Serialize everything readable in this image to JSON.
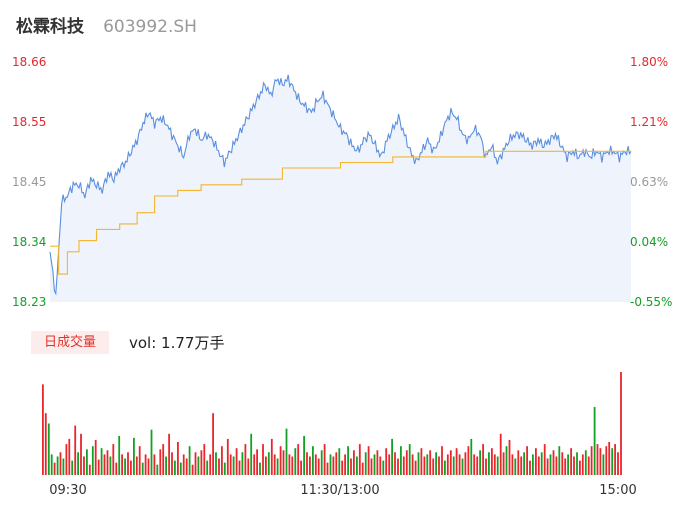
{
  "header": {
    "name": "松霖科技",
    "code": "603992.SH"
  },
  "colors": {
    "up": "#e8262b",
    "down": "#12a026",
    "price_line": "#5b8fde",
    "avg_line": "#f2b630",
    "area_fill": "#eef3fc",
    "neutral": "#999999",
    "tab_bg": "#fdecec"
  },
  "volume_panel": {
    "tab_label": "日成交量",
    "readout": "vol: 1.77万手"
  },
  "chart_data": {
    "type": "line",
    "y_price_ticks": [
      "18.66",
      "18.55",
      "18.45",
      "18.34",
      "18.23"
    ],
    "y_pct_ticks": [
      "1.80%",
      "1.21%",
      "0.63%",
      "0.04%",
      "-0.55%"
    ],
    "ylim": [
      18.23,
      18.66
    ],
    "x_ticks": [
      "09:30",
      "11:30/13:00",
      "15:00"
    ],
    "price_keypoints": [
      [
        0,
        18.32
      ],
      [
        2,
        18.24
      ],
      [
        4,
        18.41
      ],
      [
        6,
        18.42
      ],
      [
        8,
        18.44
      ],
      [
        10,
        18.44
      ],
      [
        12,
        18.42
      ],
      [
        14,
        18.45
      ],
      [
        16,
        18.44
      ],
      [
        18,
        18.43
      ],
      [
        20,
        18.46
      ],
      [
        22,
        18.45
      ],
      [
        24,
        18.47
      ],
      [
        26,
        18.48
      ],
      [
        28,
        18.5
      ],
      [
        30,
        18.52
      ],
      [
        32,
        18.55
      ],
      [
        34,
        18.57
      ],
      [
        36,
        18.55
      ],
      [
        38,
        18.56
      ],
      [
        40,
        18.55
      ],
      [
        42,
        18.53
      ],
      [
        44,
        18.51
      ],
      [
        46,
        18.49
      ],
      [
        48,
        18.53
      ],
      [
        50,
        18.54
      ],
      [
        52,
        18.52
      ],
      [
        54,
        18.53
      ],
      [
        56,
        18.52
      ],
      [
        58,
        18.5
      ],
      [
        60,
        18.48
      ],
      [
        62,
        18.5
      ],
      [
        64,
        18.52
      ],
      [
        66,
        18.54
      ],
      [
        68,
        18.56
      ],
      [
        70,
        18.58
      ],
      [
        72,
        18.6
      ],
      [
        74,
        18.62
      ],
      [
        76,
        18.6
      ],
      [
        78,
        18.63
      ],
      [
        80,
        18.62
      ],
      [
        82,
        18.63
      ],
      [
        84,
        18.61
      ],
      [
        86,
        18.59
      ],
      [
        88,
        18.58
      ],
      [
        90,
        18.57
      ],
      [
        92,
        18.59
      ],
      [
        94,
        18.6
      ],
      [
        96,
        18.58
      ],
      [
        98,
        18.56
      ],
      [
        100,
        18.54
      ],
      [
        102,
        18.53
      ],
      [
        104,
        18.51
      ],
      [
        106,
        18.5
      ],
      [
        108,
        18.52
      ],
      [
        110,
        18.53
      ],
      [
        112,
        18.51
      ],
      [
        114,
        18.49
      ],
      [
        116,
        18.52
      ],
      [
        118,
        18.54
      ],
      [
        120,
        18.56
      ],
      [
        122,
        18.53
      ],
      [
        124,
        18.5
      ],
      [
        126,
        18.48
      ],
      [
        128,
        18.5
      ],
      [
        130,
        18.52
      ],
      [
        132,
        18.5
      ],
      [
        134,
        18.52
      ],
      [
        136,
        18.55
      ],
      [
        138,
        18.57
      ],
      [
        140,
        18.56
      ],
      [
        142,
        18.53
      ],
      [
        144,
        18.52
      ],
      [
        146,
        18.54
      ],
      [
        148,
        18.53
      ],
      [
        150,
        18.49
      ],
      [
        152,
        18.51
      ],
      [
        154,
        18.48
      ],
      [
        156,
        18.5
      ],
      [
        158,
        18.52
      ],
      [
        160,
        18.53
      ],
      [
        162,
        18.53
      ],
      [
        164,
        18.52
      ],
      [
        166,
        18.51
      ],
      [
        168,
        18.52
      ],
      [
        170,
        18.51
      ],
      [
        172,
        18.52
      ],
      [
        174,
        18.53
      ],
      [
        176,
        18.51
      ],
      [
        178,
        18.49
      ],
      [
        180,
        18.5
      ],
      [
        182,
        18.49
      ],
      [
        184,
        18.5
      ],
      [
        186,
        18.49
      ],
      [
        188,
        18.5
      ],
      [
        190,
        18.49
      ],
      [
        192,
        18.5
      ],
      [
        194,
        18.5
      ],
      [
        196,
        18.49
      ],
      [
        198,
        18.5
      ],
      [
        200,
        18.5
      ]
    ],
    "avg_keypoints": [
      [
        0,
        18.33
      ],
      [
        3,
        18.28
      ],
      [
        6,
        18.32
      ],
      [
        10,
        18.34
      ],
      [
        16,
        18.36
      ],
      [
        24,
        18.37
      ],
      [
        30,
        18.39
      ],
      [
        36,
        18.42
      ],
      [
        44,
        18.43
      ],
      [
        52,
        18.44
      ],
      [
        66,
        18.45
      ],
      [
        80,
        18.47
      ],
      [
        100,
        18.48
      ],
      [
        118,
        18.49
      ],
      [
        150,
        18.5
      ],
      [
        200,
        18.5
      ]
    ],
    "volume_max": 100,
    "volume": [
      [
        88,
        "up"
      ],
      [
        60,
        "up"
      ],
      [
        50,
        "down"
      ],
      [
        20,
        "down"
      ],
      [
        12,
        "up"
      ],
      [
        18,
        "down"
      ],
      [
        22,
        "up"
      ],
      [
        16,
        "down"
      ],
      [
        30,
        "up"
      ],
      [
        35,
        "up"
      ],
      [
        14,
        "down"
      ],
      [
        48,
        "up"
      ],
      [
        22,
        "down"
      ],
      [
        40,
        "up"
      ],
      [
        18,
        "up"
      ],
      [
        25,
        "down"
      ],
      [
        10,
        "up"
      ],
      [
        28,
        "down"
      ],
      [
        34,
        "up"
      ],
      [
        15,
        "up"
      ],
      [
        26,
        "down"
      ],
      [
        20,
        "up"
      ],
      [
        24,
        "up"
      ],
      [
        18,
        "down"
      ],
      [
        30,
        "up"
      ],
      [
        12,
        "up"
      ],
      [
        38,
        "down"
      ],
      [
        20,
        "up"
      ],
      [
        16,
        "down"
      ],
      [
        22,
        "up"
      ],
      [
        14,
        "up"
      ],
      [
        36,
        "down"
      ],
      [
        18,
        "up"
      ],
      [
        28,
        "up"
      ],
      [
        12,
        "down"
      ],
      [
        20,
        "up"
      ],
      [
        16,
        "up"
      ],
      [
        44,
        "down"
      ],
      [
        20,
        "up"
      ],
      [
        10,
        "down"
      ],
      [
        25,
        "up"
      ],
      [
        30,
        "up"
      ],
      [
        18,
        "down"
      ],
      [
        40,
        "up"
      ],
      [
        22,
        "up"
      ],
      [
        14,
        "down"
      ],
      [
        32,
        "up"
      ],
      [
        12,
        "down"
      ],
      [
        20,
        "up"
      ],
      [
        16,
        "up"
      ],
      [
        28,
        "down"
      ],
      [
        10,
        "up"
      ],
      [
        22,
        "up"
      ],
      [
        18,
        "down"
      ],
      [
        24,
        "up"
      ],
      [
        30,
        "up"
      ],
      [
        14,
        "down"
      ],
      [
        20,
        "up"
      ],
      [
        60,
        "up"
      ],
      [
        22,
        "down"
      ],
      [
        16,
        "up"
      ],
      [
        28,
        "up"
      ],
      [
        12,
        "down"
      ],
      [
        35,
        "up"
      ],
      [
        20,
        "up"
      ],
      [
        18,
        "down"
      ],
      [
        26,
        "up"
      ],
      [
        14,
        "up"
      ],
      [
        22,
        "down"
      ],
      [
        30,
        "up"
      ],
      [
        16,
        "up"
      ],
      [
        40,
        "down"
      ],
      [
        20,
        "up"
      ],
      [
        25,
        "up"
      ],
      [
        12,
        "down"
      ],
      [
        30,
        "up"
      ],
      [
        18,
        "up"
      ],
      [
        22,
        "down"
      ],
      [
        35,
        "up"
      ],
      [
        20,
        "up"
      ],
      [
        16,
        "down"
      ],
      [
        28,
        "up"
      ],
      [
        24,
        "up"
      ],
      [
        45,
        "down"
      ],
      [
        20,
        "up"
      ],
      [
        18,
        "up"
      ],
      [
        26,
        "down"
      ],
      [
        30,
        "up"
      ],
      [
        14,
        "up"
      ],
      [
        38,
        "down"
      ],
      [
        22,
        "up"
      ],
      [
        18,
        "up"
      ],
      [
        28,
        "down"
      ],
      [
        20,
        "up"
      ],
      [
        16,
        "up"
      ],
      [
        24,
        "down"
      ],
      [
        30,
        "up"
      ],
      [
        12,
        "up"
      ],
      [
        20,
        "down"
      ],
      [
        18,
        "up"
      ],
      [
        22,
        "up"
      ],
      [
        26,
        "down"
      ],
      [
        14,
        "up"
      ],
      [
        20,
        "up"
      ],
      [
        28,
        "down"
      ],
      [
        16,
        "up"
      ],
      [
        24,
        "up"
      ],
      [
        18,
        "down"
      ],
      [
        30,
        "up"
      ],
      [
        12,
        "up"
      ],
      [
        22,
        "down"
      ],
      [
        28,
        "up"
      ],
      [
        16,
        "up"
      ],
      [
        20,
        "down"
      ],
      [
        24,
        "up"
      ],
      [
        18,
        "up"
      ],
      [
        14,
        "down"
      ],
      [
        26,
        "up"
      ],
      [
        20,
        "up"
      ],
      [
        35,
        "down"
      ],
      [
        22,
        "up"
      ],
      [
        16,
        "up"
      ],
      [
        28,
        "down"
      ],
      [
        18,
        "up"
      ],
      [
        24,
        "up"
      ],
      [
        30,
        "down"
      ],
      [
        20,
        "up"
      ],
      [
        14,
        "up"
      ],
      [
        22,
        "down"
      ],
      [
        26,
        "up"
      ],
      [
        18,
        "up"
      ],
      [
        20,
        "down"
      ],
      [
        24,
        "up"
      ],
      [
        16,
        "up"
      ],
      [
        22,
        "down"
      ],
      [
        18,
        "up"
      ],
      [
        28,
        "up"
      ],
      [
        14,
        "down"
      ],
      [
        20,
        "up"
      ],
      [
        24,
        "up"
      ],
      [
        18,
        "down"
      ],
      [
        26,
        "up"
      ],
      [
        20,
        "up"
      ],
      [
        16,
        "down"
      ],
      [
        22,
        "up"
      ],
      [
        28,
        "up"
      ],
      [
        35,
        "down"
      ],
      [
        20,
        "up"
      ],
      [
        18,
        "up"
      ],
      [
        24,
        "down"
      ],
      [
        30,
        "up"
      ],
      [
        16,
        "up"
      ],
      [
        22,
        "down"
      ],
      [
        26,
        "up"
      ],
      [
        20,
        "up"
      ],
      [
        18,
        "down"
      ],
      [
        40,
        "up"
      ],
      [
        22,
        "up"
      ],
      [
        28,
        "down"
      ],
      [
        34,
        "up"
      ],
      [
        20,
        "up"
      ],
      [
        16,
        "down"
      ],
      [
        24,
        "up"
      ],
      [
        18,
        "up"
      ],
      [
        22,
        "down"
      ],
      [
        28,
        "up"
      ],
      [
        14,
        "up"
      ],
      [
        20,
        "down"
      ],
      [
        26,
        "up"
      ],
      [
        18,
        "up"
      ],
      [
        22,
        "down"
      ],
      [
        30,
        "up"
      ],
      [
        16,
        "up"
      ],
      [
        20,
        "down"
      ],
      [
        24,
        "up"
      ],
      [
        18,
        "up"
      ],
      [
        28,
        "down"
      ],
      [
        22,
        "up"
      ],
      [
        16,
        "up"
      ],
      [
        20,
        "down"
      ],
      [
        26,
        "up"
      ],
      [
        18,
        "up"
      ],
      [
        22,
        "down"
      ],
      [
        14,
        "up"
      ],
      [
        20,
        "up"
      ],
      [
        24,
        "down"
      ],
      [
        18,
        "up"
      ],
      [
        28,
        "up"
      ],
      [
        66,
        "down"
      ],
      [
        30,
        "up"
      ],
      [
        26,
        "up"
      ],
      [
        20,
        "down"
      ],
      [
        28,
        "up"
      ],
      [
        32,
        "up"
      ],
      [
        26,
        "down"
      ],
      [
        30,
        "up"
      ],
      [
        22,
        "up"
      ],
      [
        100,
        "up"
      ]
    ]
  }
}
